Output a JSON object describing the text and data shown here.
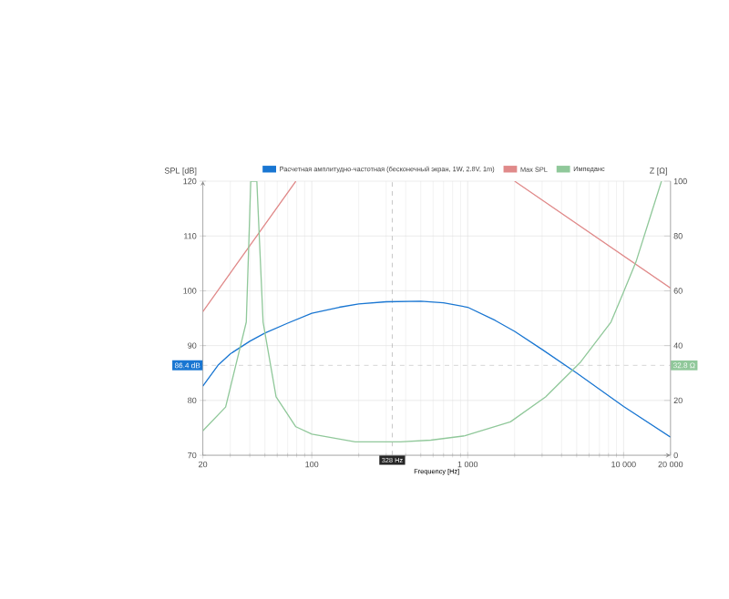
{
  "chart_data": {
    "type": "line",
    "xlabel": "Frequency [Hz]",
    "ylabel": "SPL [dB]",
    "y2label": "Z [Ω]",
    "log": "x",
    "grid": true,
    "legend": "top",
    "marker": "none",
    "line_style": "solid",
    "xlim": [
      20,
      20000
    ],
    "xticks": [
      20,
      100,
      {
        "value": 1000,
        "label": "1 000"
      },
      {
        "value": 10000,
        "label": "10 000"
      },
      {
        "value": 20000,
        "label": "20 000"
      }
    ],
    "ylim": [
      70,
      120
    ],
    "yticks": [
      70,
      80,
      90,
      100,
      110,
      120
    ],
    "y2lim": [
      0,
      100
    ],
    "y2ticks": [
      0,
      20,
      40,
      60,
      80,
      100
    ],
    "series": [
      {
        "name": "Расчетная амплитудно-частотная (бесконечный экран, 1W, 2.8V, 1m)",
        "color": "#1976d2",
        "x": [
          20,
          25,
          30,
          40,
          50,
          70,
          100,
          150,
          200,
          300,
          500,
          700,
          1000,
          1500,
          2000,
          3000,
          5000,
          10000,
          20000
        ],
        "values": [
          82.6,
          86.4,
          88.5,
          90.8,
          92.3,
          94.1,
          95.9,
          97.0,
          97.6,
          98.0,
          98.1,
          97.8,
          97.0,
          94.6,
          92.6,
          89.3,
          85.0,
          78.9,
          73.3
        ]
      },
      {
        "name": "Max SPL",
        "color": "#e08a8a",
        "x": [
          20,
          79,
          500,
          2000,
          20000
        ],
        "values": [
          96.2,
          120,
          null,
          120,
          100.5
        ]
      },
      {
        "name": "Импеданс",
        "color": "#90c89a",
        "axis": "y2",
        "x": [
          20,
          28,
          38,
          40.6,
          44.4,
          48.7,
          59,
          79,
          100,
          190,
          370,
          580,
          960,
          1880,
          3160,
          5300,
          8300,
          10000,
          12000,
          14800,
          17500
        ],
        "values": [
          8.9,
          17.6,
          48.6,
          100,
          100,
          48.6,
          21.3,
          10.4,
          7.7,
          4.9,
          4.9,
          5.5,
          7.1,
          12.2,
          21.3,
          34,
          48.6,
          59.6,
          70.5,
          86.9,
          100
        ]
      }
    ],
    "ref_lines": [
      {
        "axis": "x",
        "value": 328,
        "label": "328 Hz"
      },
      {
        "axis": "y",
        "value": 86.4,
        "label": "86.4 dB"
      }
    ],
    "annotations": [
      "32.8 Ω"
    ]
  }
}
